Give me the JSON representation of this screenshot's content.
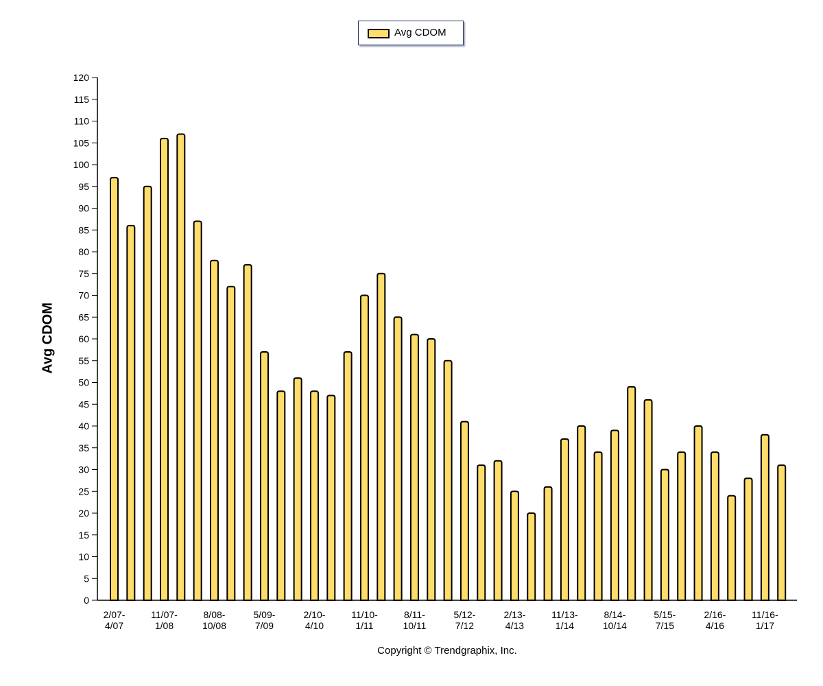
{
  "legend": {
    "label": "Avg CDOM",
    "swatch_color": "#ffdd6b"
  },
  "copyright": "Copyright © Trendgraphix, Inc.",
  "chart_data": {
    "type": "bar",
    "title": "",
    "ylabel": "Avg CDOM",
    "xlabel": "",
    "ylim": [
      0,
      120
    ],
    "ytick_step": 5,
    "grid": false,
    "legend_position": "top-center",
    "bar_color": "#ffdd6b",
    "bar_outline": "#000000",
    "series": [
      {
        "name": "Avg CDOM",
        "values": [
          97,
          86,
          95,
          106,
          107,
          87,
          78,
          72,
          77,
          57,
          48,
          51,
          48,
          47,
          57,
          70,
          75,
          65,
          61,
          60,
          55,
          41,
          31,
          32,
          25,
          20,
          26,
          37,
          40,
          34,
          39,
          49,
          46,
          30,
          34,
          40,
          34,
          24,
          28,
          38,
          31
        ]
      }
    ],
    "x_tick_labels": [
      [
        "2/07-",
        "4/07"
      ],
      [
        "11/07-",
        "1/08"
      ],
      [
        "8/08-",
        "10/08"
      ],
      [
        "5/09-",
        "7/09"
      ],
      [
        "2/10-",
        "4/10"
      ],
      [
        "11/10-",
        "1/11"
      ],
      [
        "8/11-",
        "10/11"
      ],
      [
        "5/12-",
        "7/12"
      ],
      [
        "2/13-",
        "4/13"
      ],
      [
        "11/13-",
        "1/14"
      ],
      [
        "8/14-",
        "10/14"
      ],
      [
        "5/15-",
        "7/15"
      ],
      [
        "2/16-",
        "4/16"
      ],
      [
        "11/16-",
        "1/17"
      ]
    ],
    "x_tick_every": 3
  }
}
